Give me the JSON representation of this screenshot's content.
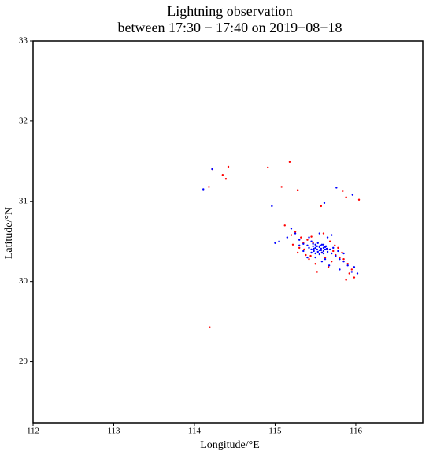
{
  "chart_data": {
    "type": "scatter",
    "title": "Lightning observation",
    "subtitle": "between 17:30 − 17:40 on 2019−08−18",
    "x_label": "Longitude/°E",
    "y_label": "Latitude/°N",
    "xlim": [
      112,
      116.83
    ],
    "ylim": [
      28.24,
      33
    ],
    "xticks": [
      112,
      113,
      114,
      115,
      116
    ],
    "yticks": [
      29,
      30,
      31,
      32,
      33
    ],
    "series": [
      {
        "color": "#ff0000",
        "x": [
          114.22,
          114.42,
          114.35,
          114.39,
          114.18,
          114.91,
          115.18,
          115.08,
          115.28,
          114.19,
          115.84,
          116.04,
          115.88,
          115.57,
          115.12,
          115.2,
          115.25,
          115.32,
          115.35,
          115.4,
          115.3,
          115.22,
          115.45,
          115.6,
          115.68,
          115.72,
          115.75,
          115.8,
          115.85,
          115.9,
          115.95,
          115.7,
          115.62,
          115.5,
          115.42,
          115.38,
          115.28,
          115.65,
          115.78,
          115.83,
          115.58,
          115.47,
          115.36,
          115.92,
          115.98,
          115.66,
          115.52,
          115.74,
          115.44,
          115.88
        ],
        "y": [
          31.4,
          31.43,
          31.33,
          31.28,
          31.18,
          31.42,
          31.49,
          31.18,
          31.14,
          29.43,
          31.13,
          31.02,
          31.05,
          30.94,
          30.7,
          30.58,
          30.62,
          30.55,
          30.48,
          30.52,
          30.42,
          30.46,
          30.56,
          30.6,
          30.5,
          30.38,
          30.33,
          30.3,
          30.28,
          30.22,
          30.15,
          30.25,
          30.3,
          30.22,
          30.28,
          30.33,
          30.36,
          30.4,
          30.42,
          30.36,
          30.36,
          30.48,
          30.4,
          30.1,
          30.05,
          30.18,
          30.12,
          30.45,
          30.32,
          30.02
        ]
      },
      {
        "color": "#0000ff",
        "x": [
          114.22,
          114.11,
          114.96,
          115.76,
          115.96,
          115.61,
          115.0,
          115.05,
          115.15,
          115.25,
          115.3,
          115.35,
          115.4,
          115.42,
          115.45,
          115.47,
          115.48,
          115.5,
          115.5,
          115.52,
          115.53,
          115.55,
          115.55,
          115.56,
          115.57,
          115.58,
          115.6,
          115.6,
          115.62,
          115.63,
          115.65,
          115.47,
          115.5,
          115.53,
          115.55,
          115.58,
          115.6,
          115.62,
          115.45,
          115.48,
          115.52,
          115.57,
          115.6,
          115.64,
          115.68,
          115.7,
          115.72,
          115.75,
          115.78,
          115.8,
          115.85,
          115.9,
          115.95,
          116.02,
          115.4,
          115.35,
          115.42,
          115.55,
          115.65,
          115.7,
          115.85,
          115.3,
          115.58,
          115.67,
          115.5,
          115.98,
          115.2,
          115.45,
          115.62,
          115.8
        ],
        "y": [
          31.4,
          31.15,
          30.94,
          31.17,
          31.08,
          30.98,
          30.48,
          30.5,
          30.55,
          30.6,
          30.52,
          30.47,
          30.45,
          30.42,
          30.4,
          30.44,
          30.38,
          30.42,
          30.46,
          30.4,
          30.37,
          30.43,
          30.39,
          30.45,
          30.41,
          30.36,
          30.42,
          30.38,
          30.4,
          30.44,
          30.37,
          30.47,
          30.35,
          30.48,
          30.34,
          30.46,
          30.35,
          30.43,
          30.36,
          30.41,
          30.44,
          30.39,
          30.46,
          30.41,
          30.4,
          30.35,
          30.42,
          30.32,
          30.38,
          30.28,
          30.25,
          30.2,
          30.12,
          30.1,
          30.3,
          30.38,
          30.55,
          30.6,
          30.55,
          30.58,
          30.35,
          30.45,
          30.25,
          30.2,
          30.3,
          30.18,
          30.66,
          30.5,
          30.28,
          30.15
        ]
      }
    ]
  }
}
